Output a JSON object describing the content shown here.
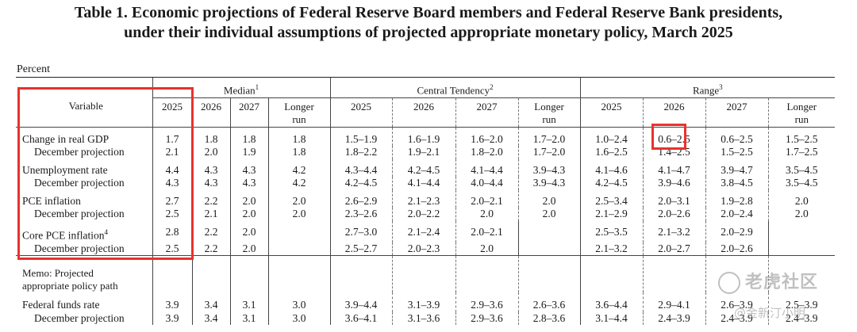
{
  "title": {
    "line1": "Table 1.  Economic projections of Federal Reserve Board members and Federal Reserve Bank presidents,",
    "line2": "under their individual assumptions of projected appropriate monetary policy, March 2025"
  },
  "unit": "Percent",
  "header": {
    "variable": "Variable",
    "groups": {
      "median": "Median",
      "median_note": "1",
      "central": "Central Tendency",
      "central_note": "2",
      "range": "Range",
      "range_note": "3"
    },
    "years": [
      "2025",
      "2026",
      "2027"
    ],
    "longer_run_line1": "Longer",
    "longer_run_line2": "run"
  },
  "rows": [
    {
      "label": "Change in real GDP",
      "note": "",
      "median": [
        "1.7",
        "1.8",
        "1.8",
        "1.8"
      ],
      "central": [
        "1.5–1.9",
        "1.6–1.9",
        "1.6–2.0",
        "1.7–2.0"
      ],
      "range": [
        "1.0–2.4",
        "0.6–2.5",
        "0.6–2.5",
        "1.5–2.5"
      ]
    },
    {
      "label": "December projection",
      "note": "",
      "median": [
        "2.1",
        "2.0",
        "1.9",
        "1.8"
      ],
      "central": [
        "1.8–2.2",
        "1.9–2.1",
        "1.8–2.0",
        "1.7–2.0"
      ],
      "range": [
        "1.6–2.5",
        "1.4–2.5",
        "1.5–2.5",
        "1.7–2.5"
      ]
    },
    {
      "label": "Unemployment rate",
      "note": "",
      "median": [
        "4.4",
        "4.3",
        "4.3",
        "4.2"
      ],
      "central": [
        "4.3–4.4",
        "4.2–4.5",
        "4.1–4.4",
        "3.9–4.3"
      ],
      "range": [
        "4.1–4.6",
        "4.1–4.7",
        "3.9–4.7",
        "3.5–4.5"
      ]
    },
    {
      "label": "December projection",
      "note": "",
      "median": [
        "4.3",
        "4.3",
        "4.3",
        "4.2"
      ],
      "central": [
        "4.2–4.5",
        "4.1–4.4",
        "4.0–4.4",
        "3.9–4.3"
      ],
      "range": [
        "4.2–4.5",
        "3.9–4.6",
        "3.8–4.5",
        "3.5–4.5"
      ]
    },
    {
      "label": "PCE inflation",
      "note": "",
      "median": [
        "2.7",
        "2.2",
        "2.0",
        "2.0"
      ],
      "central": [
        "2.6–2.9",
        "2.1–2.3",
        "2.0–2.1",
        "2.0"
      ],
      "range": [
        "2.5–3.4",
        "2.0–3.1",
        "1.9–2.8",
        "2.0"
      ]
    },
    {
      "label": "December projection",
      "note": "",
      "median": [
        "2.5",
        "2.1",
        "2.0",
        "2.0"
      ],
      "central": [
        "2.3–2.6",
        "2.0–2.2",
        "2.0",
        "2.0"
      ],
      "range": [
        "2.1–2.9",
        "2.0–2.6",
        "2.0–2.4",
        "2.0"
      ]
    },
    {
      "label": "Core PCE inflation",
      "note": "4",
      "median": [
        "2.8",
        "2.2",
        "2.0",
        ""
      ],
      "central": [
        "2.7–3.0",
        "2.1–2.4",
        "2.0–2.1",
        ""
      ],
      "range": [
        "2.5–3.5",
        "2.1–3.2",
        "2.0–2.9",
        ""
      ]
    },
    {
      "label": "December projection",
      "note": "",
      "median": [
        "2.5",
        "2.2",
        "2.0",
        ""
      ],
      "central": [
        "2.5–2.7",
        "2.0–2.3",
        "2.0",
        ""
      ],
      "range": [
        "2.1–3.2",
        "2.0–2.7",
        "2.0–2.6",
        ""
      ]
    }
  ],
  "memo": {
    "line1": "Memo: Projected",
    "line2": "appropriate policy path"
  },
  "funds_rows": [
    {
      "label": "Federal funds rate",
      "median": [
        "3.9",
        "3.4",
        "3.1",
        "3.0"
      ],
      "central": [
        "3.9–4.4",
        "3.1–3.9",
        "2.9–3.6",
        "2.6–3.6"
      ],
      "range": [
        "3.6–4.4",
        "2.9–4.1",
        "2.6–3.9",
        "2.5–3.9"
      ]
    },
    {
      "label": "December projection",
      "median": [
        "3.9",
        "3.4",
        "3.1",
        "3.0"
      ],
      "central": [
        "3.6–4.1",
        "3.1–3.6",
        "2.9–3.6",
        "2.8–3.6"
      ],
      "range": [
        "3.1–4.4",
        "2.4–3.9",
        "2.4–3.9",
        "2.4–3.9"
      ]
    }
  ],
  "watermark": {
    "brand": "老虎社区",
    "author": "@金新汀小明"
  },
  "colors": {
    "highlight": "#e8322e"
  }
}
